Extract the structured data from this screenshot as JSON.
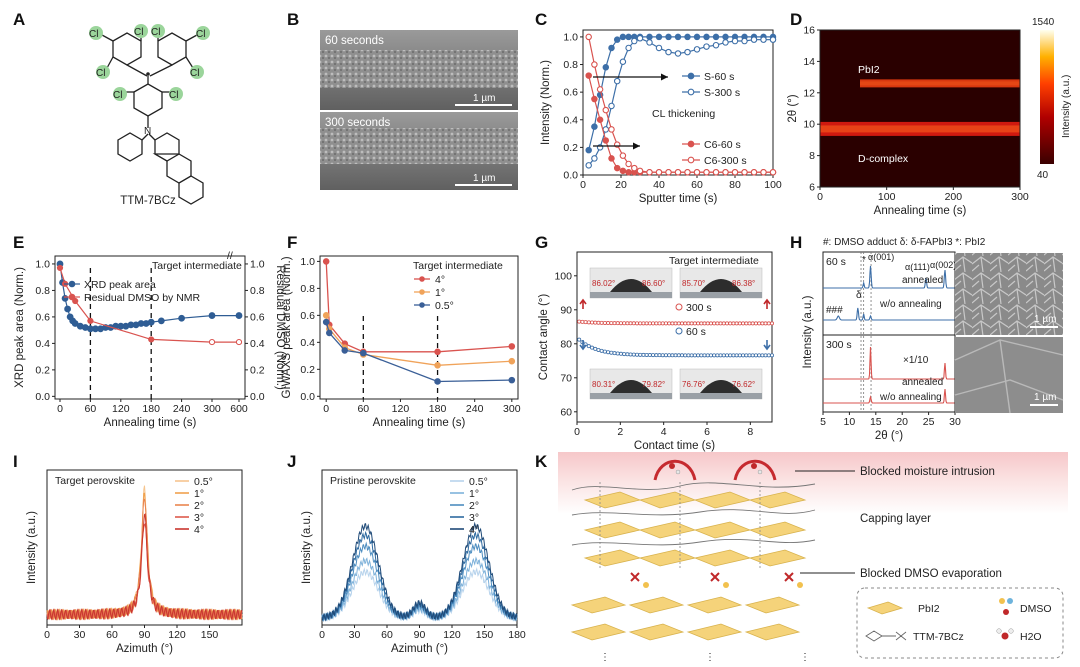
{
  "panels": {
    "A": {
      "label": "A",
      "molecule_name": "TTM-7BCz",
      "atoms": [
        "Cl",
        "Cl",
        "Cl",
        "Cl",
        "Cl",
        "Cl",
        "Cl",
        "Cl",
        "N"
      ],
      "highlight_color": "#9bd59b"
    },
    "B": {
      "label": "B",
      "top_caption": "60 seconds",
      "bottom_caption": "300 seconds",
      "scalebar": "1 µm"
    },
    "C": {
      "label": "C",
      "annotation": "CL thickening",
      "legend_s": [
        "S-60 s",
        "S-300 s"
      ],
      "legend_c": [
        "C6-60 s",
        "C6-300 s"
      ]
    },
    "D": {
      "label": "D",
      "annotation_top": "PbI2",
      "annotation_bottom": "D-complex",
      "colorbar_max": "1540",
      "colorbar_min": "40",
      "colorbar_label": "Intensity (a.u.)"
    },
    "E": {
      "label": "E",
      "header": "Target intermediate",
      "legend": [
        "XRD peak area",
        "Residual DMSO by NMR"
      ]
    },
    "F": {
      "label": "F",
      "header": "Target intermediate",
      "legend": [
        "4°",
        "1°",
        "0.5°"
      ]
    },
    "G": {
      "label": "G",
      "header": "Target intermediate",
      "angles": [
        "86.02°",
        "86.60°",
        "85.70°",
        "86.38°",
        "80.31°",
        "79.82°",
        "76.76°",
        "76.62°"
      ],
      "series_labels": [
        "300 s",
        "60 s"
      ]
    },
    "H": {
      "label": "H",
      "legend_header": "#: DMSO adduct  δ: δ-FAPbI3  *: PbI2",
      "times": [
        "60 s",
        "300 s"
      ],
      "labels": [
        "annealed",
        "w/o annealing",
        "annealed",
        "w/o annealing"
      ],
      "alpha_labels": [
        "α(001)",
        "α(111)",
        "α(002)"
      ],
      "scale_factor": "×1/10",
      "marks": [
        "###",
        "δ",
        "*"
      ],
      "scalebar": "1 µm"
    },
    "I": {
      "label": "I",
      "header": "Target perovskite",
      "legend": [
        "0.5°",
        "1°",
        "2°",
        "3°",
        "4°"
      ]
    },
    "J": {
      "label": "J",
      "header": "Pristine perovskite",
      "legend": [
        "0.5°",
        "1°",
        "2°",
        "3°",
        "4°"
      ]
    },
    "K": {
      "label": "K",
      "callouts": [
        "Blocked moisture intrusion",
        "Capping layer",
        "Blocked DMSO evaporation"
      ],
      "legend": [
        "PbI2",
        "DMSO",
        "TTM-7BCz",
        "H2O"
      ]
    }
  },
  "chart_data": [
    {
      "panel": "C",
      "type": "line",
      "xlabel": "Sputter time (s)",
      "ylabel": "Intensity (Norm.)",
      "xlim": [
        0,
        100
      ],
      "ylim": [
        0,
        1.05
      ],
      "xticks": [
        0,
        20,
        40,
        60,
        80,
        100
      ],
      "yticks": [
        0.0,
        0.2,
        0.4,
        0.6,
        0.8,
        1.0
      ],
      "x": [
        3,
        6,
        9,
        12,
        15,
        18,
        21,
        24,
        27,
        30,
        35,
        40,
        45,
        50,
        55,
        60,
        65,
        70,
        75,
        80,
        85,
        90,
        95,
        100
      ],
      "series": [
        {
          "name": "S-60 s",
          "color": "#3d6fa8",
          "filled": true,
          "values": [
            0.18,
            0.35,
            0.58,
            0.78,
            0.92,
            0.98,
            1.0,
            1.0,
            1.0,
            1.0,
            1.0,
            1.0,
            1.0,
            1.0,
            1.0,
            1.0,
            1.0,
            1.0,
            1.0,
            1.0,
            1.0,
            1.0,
            1.0,
            1.0
          ]
        },
        {
          "name": "S-300 s",
          "color": "#3d6fa8",
          "filled": false,
          "values": [
            0.07,
            0.12,
            0.2,
            0.33,
            0.5,
            0.68,
            0.82,
            0.92,
            0.97,
            0.99,
            0.96,
            0.92,
            0.89,
            0.88,
            0.89,
            0.91,
            0.93,
            0.94,
            0.96,
            0.97,
            0.97,
            0.98,
            0.98,
            0.98
          ]
        },
        {
          "name": "C6-60 s",
          "color": "#d9534f",
          "filled": true,
          "values": [
            0.72,
            0.55,
            0.4,
            0.25,
            0.12,
            0.05,
            0.03,
            0.02,
            0.02,
            0.02,
            0.02,
            0.02,
            0.02,
            0.02,
            0.02,
            0.02,
            0.02,
            0.02,
            0.02,
            0.02,
            0.02,
            0.02,
            0.02,
            0.02
          ]
        },
        {
          "name": "C6-300 s",
          "color": "#d9534f",
          "filled": false,
          "values": [
            1.0,
            0.8,
            0.62,
            0.47,
            0.33,
            0.22,
            0.14,
            0.08,
            0.05,
            0.03,
            0.02,
            0.02,
            0.02,
            0.02,
            0.02,
            0.02,
            0.02,
            0.02,
            0.02,
            0.02,
            0.02,
            0.02,
            0.02,
            0.02
          ]
        }
      ]
    },
    {
      "panel": "D",
      "type": "heatmap",
      "xlabel": "Annealing time (s)",
      "ylabel": "2θ (°)",
      "xlim": [
        0,
        300
      ],
      "ylim": [
        6,
        16
      ],
      "xticks": [
        0,
        100,
        200,
        300
      ],
      "yticks": [
        6,
        8,
        10,
        12,
        14,
        16
      ],
      "bands": [
        {
          "name": "PbI2",
          "center": 12.6,
          "start": 60,
          "intensity": 0.55
        },
        {
          "name": "D-complex",
          "center": 9.7,
          "start": 0,
          "intensity": 0.85
        }
      ]
    },
    {
      "panel": "E",
      "type": "line",
      "xlabel": "Annealing time (s)",
      "ylabel": "XRD peak area (Norm.)",
      "ylabel_right": "Residual DMSO (Norm.)",
      "xticks": [
        "0",
        "60",
        "120",
        "180",
        "240",
        "300",
        "600"
      ],
      "yticks": [
        0.0,
        0.2,
        0.4,
        0.6,
        0.8,
        1.0
      ],
      "vlines": [
        60,
        180
      ],
      "series": [
        {
          "name": "XRD peak area",
          "color": "#2f5d94",
          "x": [
            0,
            5,
            10,
            15,
            20,
            25,
            30,
            40,
            50,
            60,
            70,
            80,
            90,
            100,
            110,
            120,
            130,
            140,
            150,
            160,
            170,
            180,
            200,
            240,
            300,
            600
          ],
          "values": [
            1.0,
            0.86,
            0.74,
            0.66,
            0.6,
            0.57,
            0.55,
            0.53,
            0.52,
            0.51,
            0.51,
            0.51,
            0.52,
            0.52,
            0.53,
            0.53,
            0.53,
            0.54,
            0.54,
            0.55,
            0.55,
            0.56,
            0.57,
            0.59,
            0.61,
            0.61
          ]
        },
        {
          "name": "Residual DMSO by NMR",
          "color": "#d9534f",
          "x": [
            0,
            10,
            30,
            60,
            180,
            300,
            600
          ],
          "values": [
            0.97,
            0.85,
            0.72,
            0.57,
            0.43,
            0.41,
            0.41
          ]
        }
      ]
    },
    {
      "panel": "F",
      "type": "line",
      "xlabel": "Annealing time (s)",
      "ylabel": "GIWAXS peak area (Norm.)",
      "xlim": [
        0,
        300
      ],
      "ylim": [
        0,
        1.0
      ],
      "xticks": [
        0,
        60,
        120,
        180,
        240,
        300
      ],
      "yticks": [
        0.0,
        0.2,
        0.4,
        0.6,
        0.8,
        1.0
      ],
      "vlines": [
        60,
        180
      ],
      "x": [
        0,
        5,
        30,
        60,
        180,
        300
      ],
      "series": [
        {
          "name": "4°",
          "color": "#d9534f",
          "values": [
            1.0,
            0.53,
            0.39,
            0.33,
            0.33,
            0.37
          ]
        },
        {
          "name": "1°",
          "color": "#f0a35a",
          "values": [
            0.6,
            0.5,
            0.36,
            0.31,
            0.23,
            0.26
          ]
        },
        {
          "name": "0.5°",
          "color": "#3a5f97",
          "values": [
            0.55,
            0.47,
            0.34,
            0.32,
            0.11,
            0.12
          ]
        }
      ]
    },
    {
      "panel": "G",
      "type": "scatter",
      "xlabel": "Contact time (s)",
      "ylabel": "Contact angle (°)",
      "xlim": [
        0,
        9
      ],
      "ylim": [
        57,
        107
      ],
      "xticks": [
        0,
        2,
        4,
        6,
        8
      ],
      "yticks": [
        60,
        70,
        80,
        90,
        100
      ],
      "series": [
        {
          "name": "300 s",
          "color": "#d9534f",
          "x0": 0.1,
          "x1": 9,
          "start": 86.6,
          "end": 86.0
        },
        {
          "name": "60 s",
          "color": "#3d6fa8",
          "x0": 0.1,
          "x1": 9,
          "start": 81.8,
          "end": 76.6
        }
      ]
    },
    {
      "panel": "H",
      "type": "line",
      "xlabel": "2θ (°)",
      "ylabel": "Intensity (a.u.)",
      "xlim": [
        5,
        30
      ],
      "xticks": [
        5,
        10,
        15,
        20,
        25,
        30
      ],
      "peaks_deg": [
        7.9,
        11.6,
        12.7,
        14.0,
        24.5,
        28.1
      ],
      "series": [
        "60 s annealed",
        "60 s w/o annealing",
        "300 s annealed",
        "300 s w/o annealing"
      ]
    },
    {
      "panel": "I",
      "type": "line",
      "xlabel": "Azimuth (°)",
      "ylabel": "Intensity (a.u.)",
      "xlim": [
        0,
        180
      ],
      "xticks": [
        0,
        30,
        60,
        90,
        120,
        150
      ],
      "peak_center": 90,
      "series": [
        {
          "name": "0.5°",
          "color": "#f6c58f",
          "peak": 1.0
        },
        {
          "name": "1°",
          "color": "#f0a24e",
          "peak": 0.97
        },
        {
          "name": "2°",
          "color": "#e98550",
          "peak": 0.95
        },
        {
          "name": "3°",
          "color": "#de5a4c",
          "peak": 0.75
        },
        {
          "name": "4°",
          "color": "#c9362e",
          "peak": 0.8
        }
      ]
    },
    {
      "panel": "J",
      "type": "line",
      "xlabel": "Azimuth (°)",
      "ylabel": "Intensity (a.u.)",
      "xlim": [
        0,
        180
      ],
      "xticks": [
        0,
        30,
        60,
        90,
        120,
        150,
        180
      ],
      "peak_centers": [
        40,
        142
      ],
      "series": [
        {
          "name": "0.5°",
          "color": "#b7d3ec",
          "peak": 0.5
        },
        {
          "name": "1°",
          "color": "#7fb2da",
          "peak": 0.62
        },
        {
          "name": "2°",
          "color": "#4d8dc0",
          "peak": 0.78
        },
        {
          "name": "3°",
          "color": "#2e6aa0",
          "peak": 0.9
        },
        {
          "name": "4°",
          "color": "#1f4a78",
          "peak": 1.0
        }
      ]
    }
  ]
}
